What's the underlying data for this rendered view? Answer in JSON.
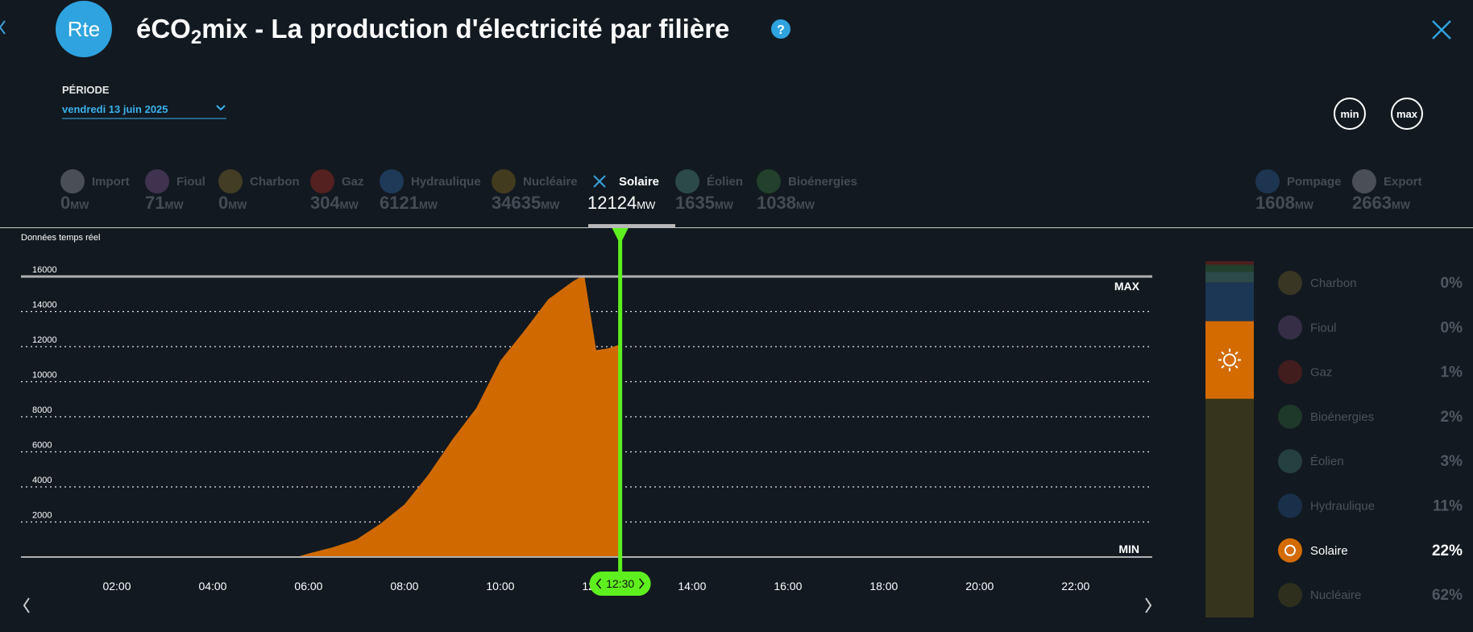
{
  "header": {
    "logo": "Rte",
    "title_parts": [
      "éCO",
      "2",
      "mix - La production d'électricité par filière"
    ],
    "help": "?"
  },
  "period": {
    "label": "PÉRIODE",
    "value": "vendredi 13 juin 2025"
  },
  "zoom": {
    "min": "min",
    "max": "max"
  },
  "filters": {
    "unit": "MW",
    "items": [
      {
        "name": "Import",
        "value": 0,
        "color": "#4a4f55",
        "active": false
      },
      {
        "name": "Fioul",
        "value": 71,
        "color": "#3f3350",
        "active": false
      },
      {
        "name": "Charbon",
        "value": 0,
        "color": "#433d25",
        "active": false
      },
      {
        "name": "Gaz",
        "value": 304,
        "color": "#552020",
        "active": false
      },
      {
        "name": "Hydraulique",
        "value": 6121,
        "color": "#1e3a58",
        "active": false
      },
      {
        "name": "Nucléaire",
        "value": 34635,
        "color": "#423b1e",
        "active": false
      },
      {
        "name": "Solaire",
        "value": 12124,
        "color": "#3aa0dc",
        "active": true
      },
      {
        "name": "Éolien",
        "value": 1635,
        "color": "#2b4a48",
        "active": false
      },
      {
        "name": "Bioénergies",
        "value": 1038,
        "color": "#22402c",
        "active": false
      },
      {
        "name": "Pompage",
        "value": 1608,
        "color": "#1d3550",
        "active": false
      },
      {
        "name": "Export",
        "value": 2663,
        "color": "#4a4f55",
        "active": false
      }
    ]
  },
  "chart_data": {
    "type": "area",
    "label": "Données temps réel",
    "color": "#d06a00",
    "x": [
      5.75,
      6,
      6.5,
      7,
      7.5,
      8,
      8.5,
      9,
      9.5,
      10,
      10.5,
      11,
      11.5,
      11.75,
      12,
      12.25,
      12.5
    ],
    "values": [
      0,
      200,
      550,
      1000,
      1900,
      3000,
      4700,
      6700,
      8500,
      11200,
      12900,
      14700,
      15700,
      16100,
      11800,
      11900,
      12124
    ],
    "xlim": [
      0,
      23.6
    ],
    "xticks": [
      {
        "value": 2,
        "label": "02:00"
      },
      {
        "value": 4,
        "label": "04:00"
      },
      {
        "value": 6,
        "label": "06:00"
      },
      {
        "value": 8,
        "label": "08:00"
      },
      {
        "value": 10,
        "label": "10:00"
      },
      {
        "value": 12,
        "label": "12:00"
      },
      {
        "value": 14,
        "label": "14:00"
      },
      {
        "value": 16,
        "label": "16:00"
      },
      {
        "value": 18,
        "label": "18:00"
      },
      {
        "value": 20,
        "label": "20:00"
      },
      {
        "value": 22,
        "label": "22:00"
      }
    ],
    "ylim": [
      0,
      18000
    ],
    "yticks": [
      2000,
      4000,
      6000,
      8000,
      10000,
      12000,
      14000,
      16000
    ],
    "grid": true,
    "max_line": {
      "value": 16000,
      "label": "MAX"
    },
    "min_line": {
      "value": 0,
      "label": "MIN"
    },
    "cursor": {
      "value": 12.5,
      "label": "12:30"
    }
  },
  "mix": {
    "type": "stacked-bar",
    "categories": [
      "Charbon",
      "Fioul",
      "Gaz",
      "Bioénergies",
      "Éolien",
      "Hydraulique",
      "Solaire",
      "Nucléaire"
    ],
    "values": [
      0,
      0,
      1,
      2,
      3,
      11,
      22,
      62
    ],
    "value_labels": [
      "0%",
      "0%",
      "1%",
      "2%",
      "3%",
      "11%",
      "22%",
      "62%"
    ],
    "colors": [
      "#433d25",
      "#3f3350",
      "#4e1e1e",
      "#22402c",
      "#2b4a48",
      "#1c3656",
      "#d46b00",
      "#36341c"
    ]
  }
}
